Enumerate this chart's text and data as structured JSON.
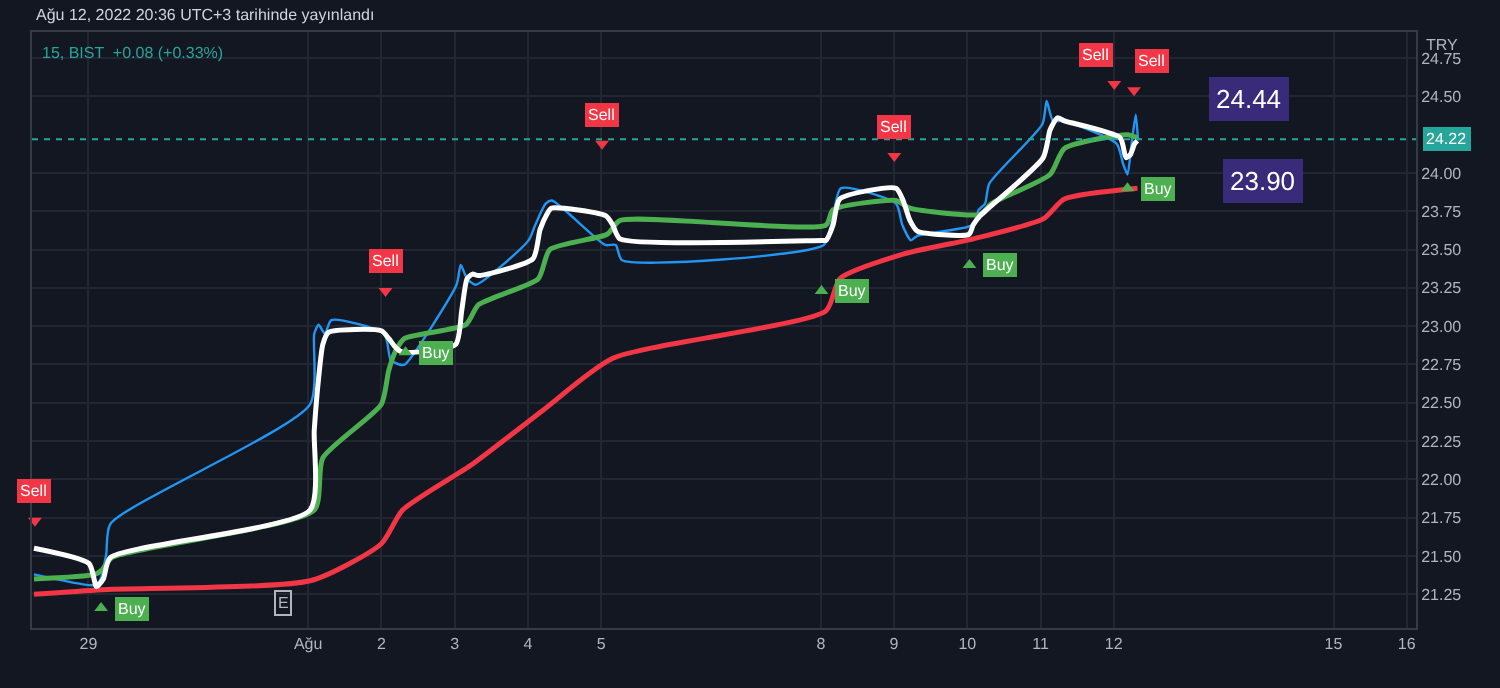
{
  "chart_data": {
    "type": "line",
    "title": "Ağu 12, 2022 20:36 UTC+3 tarihinde yayınlandı",
    "subtitle": "15, BIST  +0.08 (+0.33%)",
    "ylabel": "TRY",
    "xlim": [
      "2022-07-28T15:31",
      "2022-08-16T13:02"
    ],
    "xticks": [
      {
        "value": "2022-07-29T10:00",
        "label": "29"
      },
      {
        "value": "2022-08-01T10:00",
        "label": "Ağu"
      },
      {
        "value": "2022-08-02T10:00",
        "label": "2"
      },
      {
        "value": "2022-08-03T10:00",
        "label": "3"
      },
      {
        "value": "2022-08-04T10:00",
        "label": "4"
      },
      {
        "value": "2022-08-05T10:00",
        "label": "5"
      },
      {
        "value": "2022-08-08T10:00",
        "label": "8"
      },
      {
        "value": "2022-08-09T10:00",
        "label": "9"
      },
      {
        "value": "2022-08-10T10:00",
        "label": "10"
      },
      {
        "value": "2022-08-11T10:00",
        "label": "11"
      },
      {
        "value": "2022-08-12T10:00",
        "label": "12"
      },
      {
        "value": "2022-08-15T10:00",
        "label": "15"
      },
      {
        "value": "2022-08-16T10:00",
        "label": "16"
      }
    ],
    "ylim": [
      21.03,
      24.92
    ],
    "yticks": [
      {
        "value": 21.25,
        "label": "21.25"
      },
      {
        "value": 21.5,
        "label": "21.50"
      },
      {
        "value": 21.75,
        "label": "21.75"
      },
      {
        "value": 22,
        "label": "22.00"
      },
      {
        "value": 22.25,
        "label": "22.25"
      },
      {
        "value": 22.5,
        "label": "22.50"
      },
      {
        "value": 22.75,
        "label": "22.75"
      },
      {
        "value": 23,
        "label": "23.00"
      },
      {
        "value": 23.25,
        "label": "23.25"
      },
      {
        "value": 23.5,
        "label": "23.50"
      },
      {
        "value": 23.75,
        "label": "23.75"
      },
      {
        "value": 24,
        "label": "24.00"
      },
      {
        "value": 24.5,
        "label": "24.50"
      },
      {
        "value": 24.75,
        "label": "24.75"
      }
    ],
    "grid": true,
    "ref_lines": [
      {
        "axis": "y",
        "value": 24.22,
        "label": "24.22",
        "color": "#26a69a",
        "line_style": "dotted"
      }
    ],
    "series": [
      {
        "color": "#2196f3",
        "x": [
          "2022-07-28T16:10",
          "2022-07-29T11:41",
          "2022-07-29T13:46",
          "2022-07-29T15:50",
          "2022-07-29T17:12",
          "2022-08-01T10:38",
          "2022-08-01T12:00",
          "2022-08-01T13:26",
          "2022-08-01T15:31",
          "2022-08-01T17:36",
          "2022-08-02T10:58",
          "2022-08-02T13:02",
          "2022-08-02T15:50",
          "2022-08-02T17:41",
          "2022-08-03T10:38",
          "2022-08-03T12:00",
          "2022-08-03T14:05",
          "2022-08-03T16:53",
          "2022-08-04T10:14",
          "2022-08-04T12:24",
          "2022-08-04T15:50",
          "2022-08-04T17:55",
          "2022-08-05T11:22",
          "2022-08-05T14:48",
          "2022-08-05T16:53",
          "2022-08-08T10:58",
          "2022-08-08T13:46",
          "2022-08-08T16:34",
          "2022-08-09T10:38",
          "2022-08-09T12:43",
          "2022-08-09T15:31",
          "2022-08-09T17:36",
          "2022-08-10T11:41",
          "2022-08-10T13:46",
          "2022-08-10T15:50",
          "2022-08-10T17:12",
          "2022-08-11T10:38",
          "2022-08-11T12:00",
          "2022-08-11T14:05",
          "2022-08-11T17:36",
          "2022-08-12T10:58",
          "2022-08-12T13:02",
          "2022-08-12T14:29",
          "2022-08-12T15:50",
          "2022-08-12T17:12",
          "2022-08-12T17:55"
        ],
        "values": [
          21.38,
          21.31,
          21.34,
          21.51,
          21.71,
          22.49,
          22.95,
          23.01,
          22.95,
          23.04,
          22.95,
          22.78,
          22.75,
          22.75,
          23.27,
          23.4,
          23.31,
          23.27,
          23.56,
          23.66,
          23.8,
          23.82,
          23.53,
          23.53,
          23.43,
          23.53,
          23.69,
          23.9,
          23.8,
          23.66,
          23.56,
          23.59,
          23.66,
          23.76,
          23.8,
          23.93,
          24.32,
          24.47,
          24.34,
          24.34,
          24.19,
          24.06,
          23.99,
          24.19,
          24.38,
          24.22
        ]
      },
      {
        "color": "#f23645",
        "x": [
          "2022-07-28T16:10",
          "2022-07-29T14:29",
          "2022-08-01T11:02",
          "2022-08-02T10:00",
          "2022-08-02T16:58",
          "2022-08-03T15:55",
          "2022-08-04T14:53",
          "2022-08-05T13:50",
          "2022-08-08T11:41",
          "2022-08-08T16:14",
          "2022-08-09T12:58",
          "2022-08-10T11:55",
          "2022-08-11T10:53",
          "2022-08-11T17:50",
          "2022-08-12T17:46"
        ],
        "values": [
          21.25,
          21.28,
          21.34,
          21.58,
          21.8,
          22.1,
          22.45,
          22.79,
          23.1,
          23.31,
          23.47,
          23.57,
          23.7,
          23.83,
          23.9
        ]
      },
      {
        "color": "#4caf50",
        "x": [
          "2022-07-28T16:10",
          "2022-07-29T12:05",
          "2022-07-29T14:29",
          "2022-07-29T17:41",
          "2022-08-01T12:00",
          "2022-08-01T14:48",
          "2022-08-02T10:00",
          "2022-08-02T12:24",
          "2022-08-02T14:43",
          "2022-08-02T17:37",
          "2022-08-03T13:41",
          "2022-08-03T17:50",
          "2022-08-04T13:26",
          "2022-08-04T17:12",
          "2022-08-05T12:00",
          "2022-08-05T16:10",
          "2022-08-08T11:41",
          "2022-08-08T14:00",
          "2022-08-09T10:38",
          "2022-08-09T15:12",
          "2022-08-10T14:10",
          "2022-08-10T17:55",
          "2022-08-11T13:07",
          "2022-08-11T17:50",
          "2022-08-12T14:29",
          "2022-08-12T17:46"
        ],
        "values": [
          21.35,
          21.38,
          21.41,
          21.49,
          21.8,
          22.14,
          22.49,
          22.71,
          22.84,
          22.92,
          23.01,
          23.14,
          23.31,
          23.5,
          23.6,
          23.69,
          23.66,
          23.76,
          23.82,
          23.77,
          23.73,
          23.8,
          23.99,
          24.16,
          24.25,
          24.23
        ]
      },
      {
        "color": "#ffffff",
        "x": [
          "2022-07-28T16:10",
          "2022-07-29T10:14",
          "2022-07-29T12:38",
          "2022-07-29T14:53",
          "2022-07-29T17:12",
          "2022-08-01T10:38",
          "2022-08-01T12:00",
          "2022-08-01T13:26",
          "2022-08-01T14:48",
          "2022-08-01T16:38",
          "2022-08-02T10:00",
          "2022-08-02T12:24",
          "2022-08-02T14:43",
          "2022-08-02T16:58",
          "2022-08-03T10:19",
          "2022-08-03T12:19",
          "2022-08-03T14:05",
          "2022-08-03T15:55",
          "2022-08-03T17:50",
          "2022-08-04T11:41",
          "2022-08-04T14:00",
          "2022-08-04T16:14",
          "2022-08-04T17:41",
          "2022-08-05T11:36",
          "2022-08-05T13:50",
          "2022-08-05T16:10",
          "2022-08-08T10:34",
          "2022-08-08T11:41",
          "2022-08-08T14:00",
          "2022-08-08T16:14",
          "2022-08-09T10:38",
          "2022-08-09T12:58",
          "2022-08-09T15:12",
          "2022-08-09T17:36",
          "2022-08-10T10:34",
          "2022-08-10T11:55",
          "2022-08-10T14:10",
          "2022-08-10T16:58",
          "2022-08-11T10:53",
          "2022-08-11T13:07",
          "2022-08-11T15:31",
          "2022-08-11T17:50",
          "2022-08-12T12:05",
          "2022-08-12T14:00",
          "2022-08-12T15:26",
          "2022-08-12T16:48",
          "2022-08-12T17:46"
        ],
        "values": [
          21.55,
          21.45,
          21.3,
          21.35,
          21.49,
          21.8,
          22.32,
          22.66,
          22.88,
          22.96,
          22.97,
          22.92,
          22.86,
          22.83,
          22.88,
          23.1,
          23.31,
          23.34,
          23.33,
          23.44,
          23.63,
          23.73,
          23.77,
          23.72,
          23.66,
          23.57,
          23.56,
          23.56,
          23.66,
          23.83,
          23.9,
          23.82,
          23.69,
          23.62,
          23.6,
          23.66,
          23.72,
          23.77,
          24.1,
          24.28,
          24.36,
          24.34,
          24.23,
          24.1,
          24.12,
          24.19,
          24.21
        ]
      },
      {
        "type": "scatter",
        "marker": "triangle",
        "color": "#f23645",
        "x": [
          "2022-07-28T16:29",
          "2022-08-02T11:22",
          "2022-08-05T10:19",
          "2022-08-09T10:05",
          "2022-08-12T10:10",
          "2022-08-12T16:38"
        ],
        "values": [
          21.73,
          23.23,
          24.19,
          24.11,
          24.58,
          24.54
        ],
        "value_labels": [
          "Sell",
          "Sell",
          "Sell",
          "Sell",
          "Sell",
          "Sell"
        ]
      },
      {
        "type": "scatter",
        "marker": "triangle",
        "color": "#4caf50",
        "x": [
          "2022-07-29T14:10",
          "2022-08-02T17:55",
          "2022-08-08T10:14",
          "2022-08-10T10:43",
          "2022-08-12T14:29"
        ],
        "values": [
          21.16,
          22.83,
          23.23,
          23.4,
          23.9
        ],
        "value_labels": [
          "Buy",
          "Buy",
          "Buy",
          "Buy",
          "Buy"
        ]
      }
    ],
    "annotations": [
      "24.44",
      "23.90",
      "E"
    ]
  }
}
